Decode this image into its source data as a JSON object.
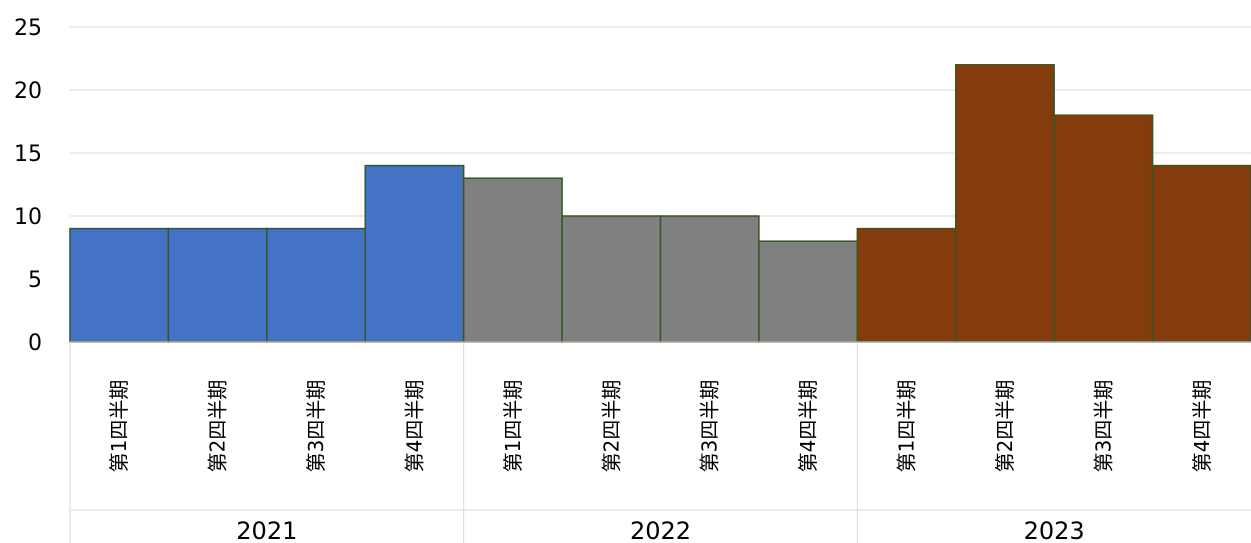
{
  "chart_data": {
    "type": "bar",
    "title": "",
    "xlabel": "",
    "ylabel": "",
    "ylim": [
      0,
      25
    ],
    "yticks": [
      "0",
      "5",
      "10",
      "15",
      "20",
      "25"
    ],
    "grid": true,
    "legend": "none",
    "groups": [
      {
        "year": "2021",
        "color": "#4472c4",
        "categories": [
          "第1四半期",
          "第2四半期",
          "第3四半期",
          "第4四半期"
        ],
        "values": [
          9,
          9,
          9,
          14
        ]
      },
      {
        "year": "2022",
        "color": "#808080",
        "categories": [
          "第1四半期",
          "第2四半期",
          "第3四半期",
          "第4四半期"
        ],
        "values": [
          13,
          10,
          10,
          8
        ]
      },
      {
        "year": "2023",
        "color": "#843c0c",
        "categories": [
          "第1四半期",
          "第2四半期",
          "第3四半期",
          "第4四半期"
        ],
        "values": [
          9,
          22,
          18,
          14
        ]
      }
    ]
  }
}
